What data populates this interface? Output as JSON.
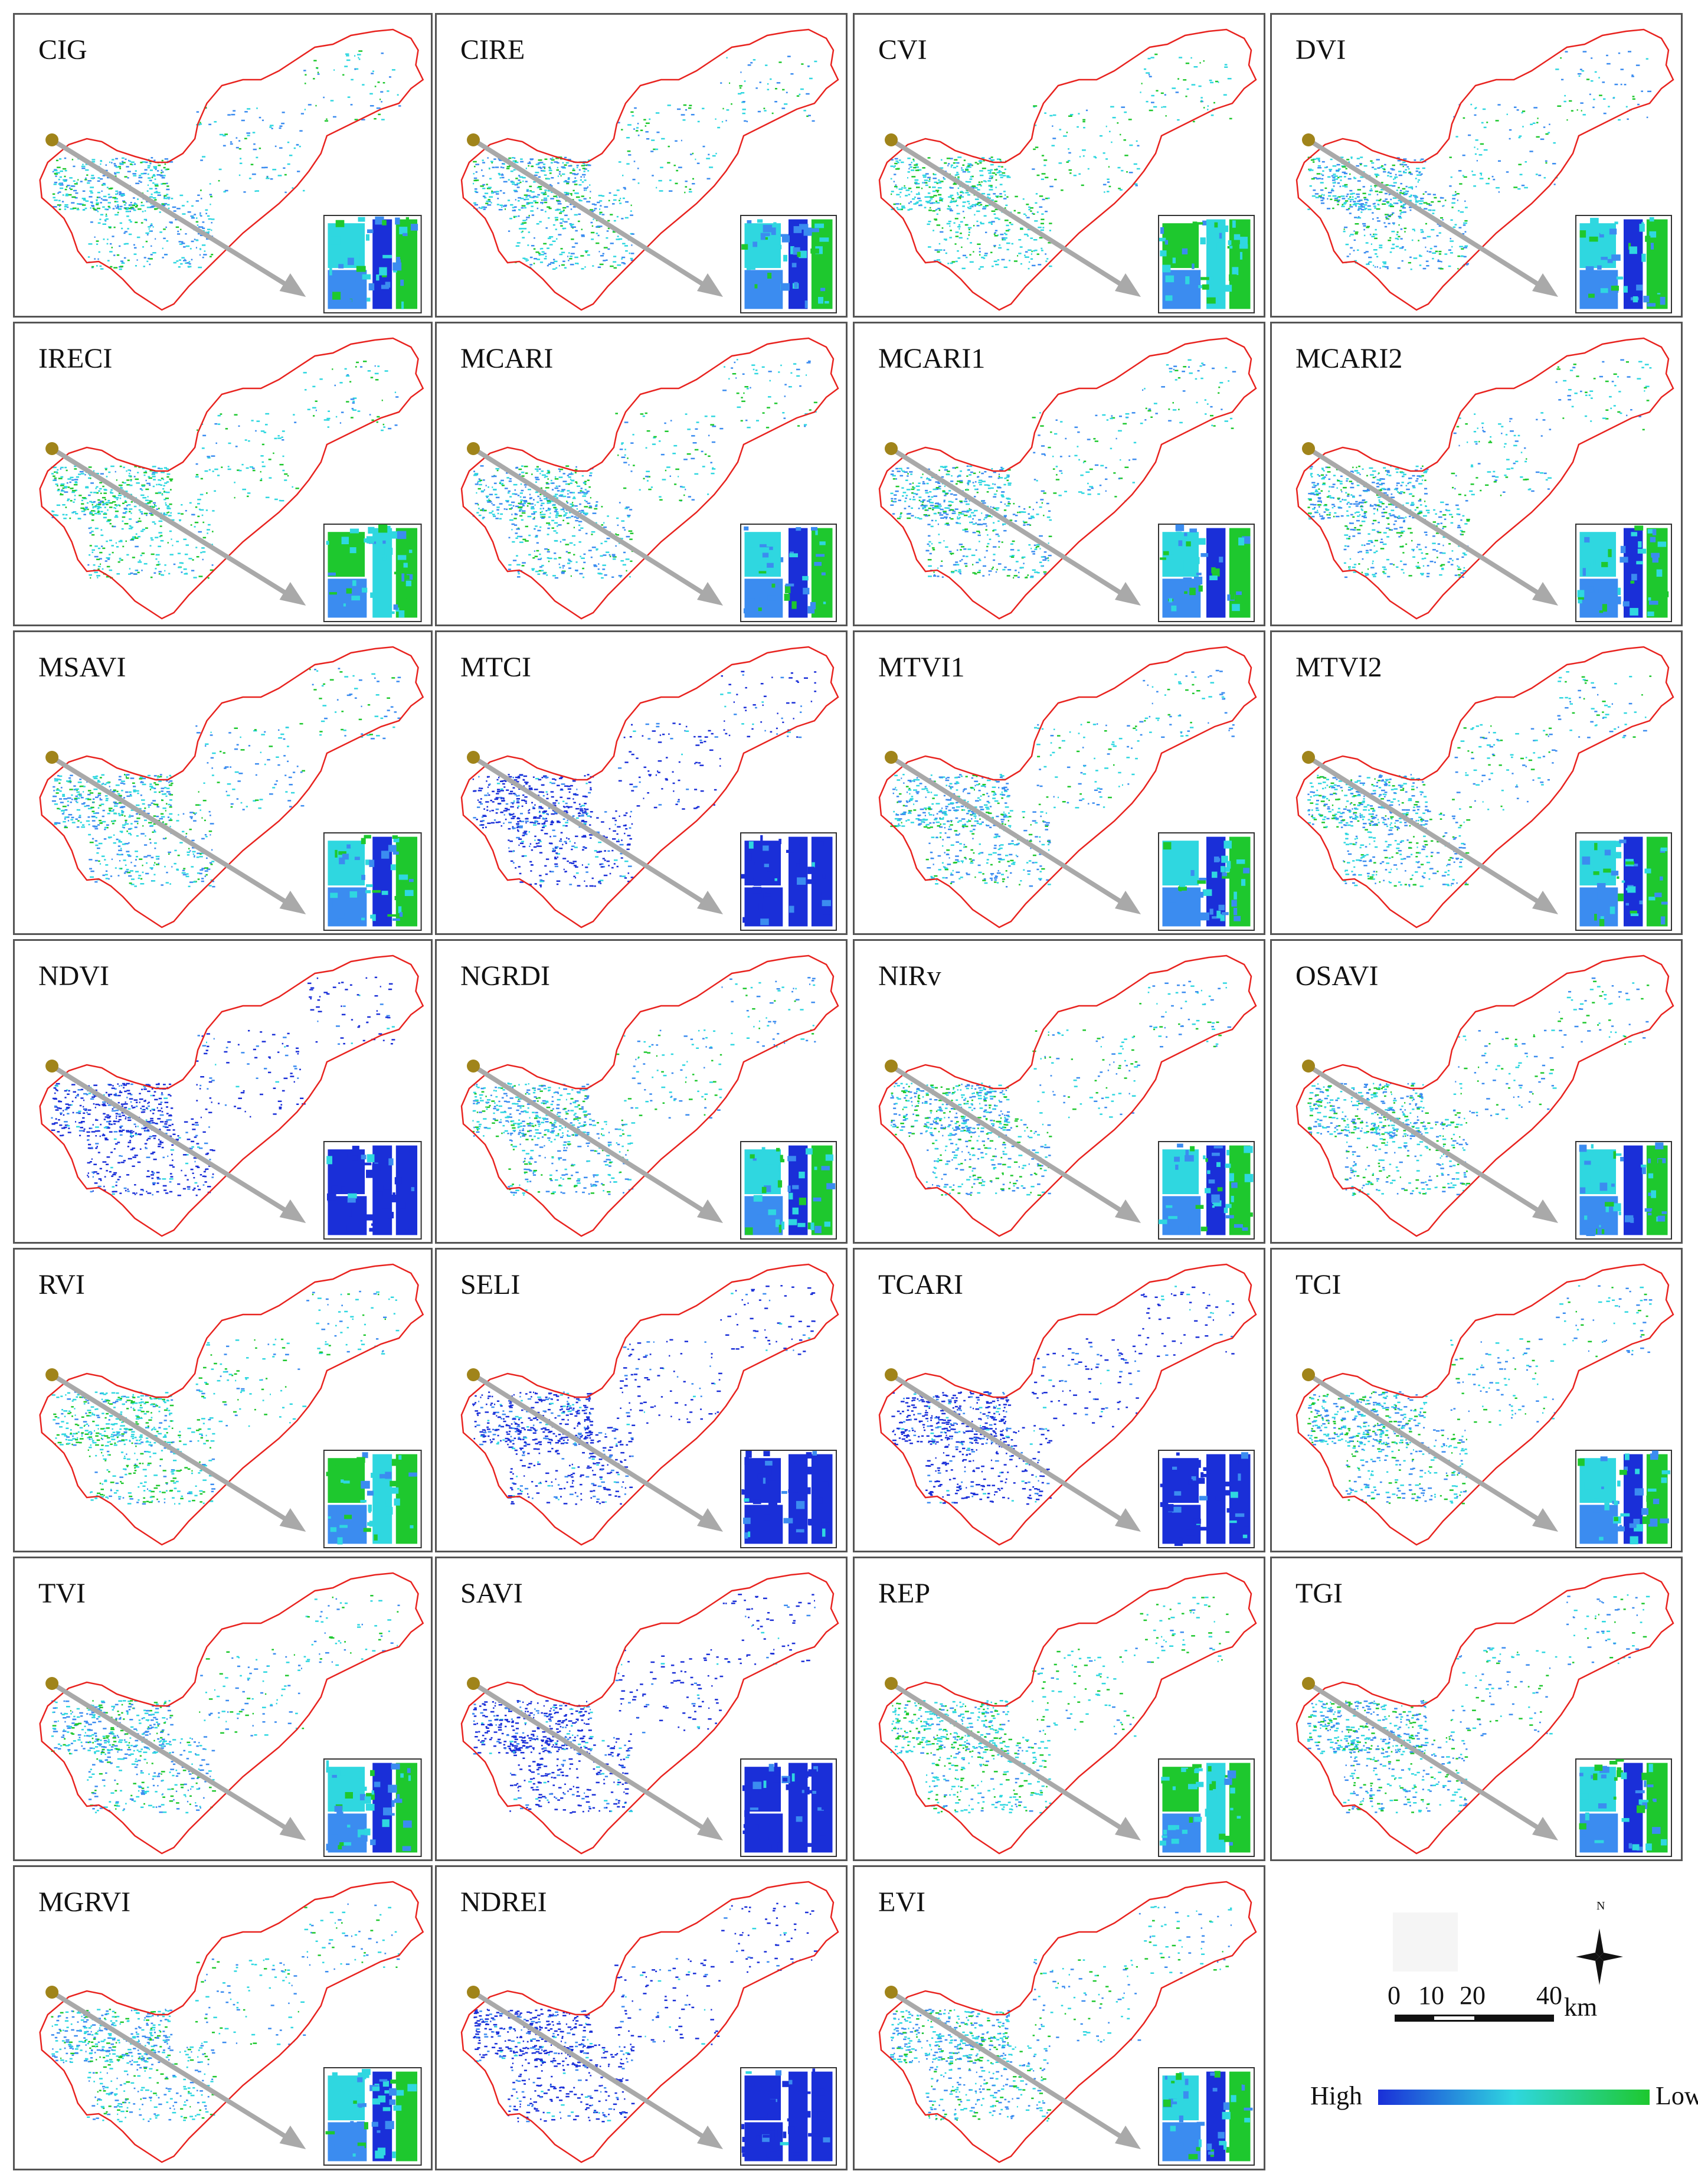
{
  "figure": {
    "panels": [
      {
        "label": "CIG",
        "palette": "mixed"
      },
      {
        "label": "CIRE",
        "palette": "mixed"
      },
      {
        "label": "CVI",
        "palette": "green"
      },
      {
        "label": "DVI",
        "palette": "mixed"
      },
      {
        "label": "IRECI",
        "palette": "green"
      },
      {
        "label": "MCARI",
        "palette": "mixed"
      },
      {
        "label": "MCARI1",
        "palette": "mixed"
      },
      {
        "label": "MCARI2",
        "palette": "mixed"
      },
      {
        "label": "MSAVI",
        "palette": "mixed"
      },
      {
        "label": "MTCI",
        "palette": "blue"
      },
      {
        "label": "MTVI1",
        "palette": "mixed"
      },
      {
        "label": "MTVI2",
        "palette": "mixed"
      },
      {
        "label": "NDVI",
        "palette": "blue"
      },
      {
        "label": "NGRDI",
        "palette": "mixed"
      },
      {
        "label": "NIRv",
        "palette": "mixed"
      },
      {
        "label": "OSAVI",
        "palette": "mixed"
      },
      {
        "label": "RVI",
        "palette": "green"
      },
      {
        "label": "SELI",
        "palette": "blue"
      },
      {
        "label": "TCARI",
        "palette": "blue"
      },
      {
        "label": "TCI",
        "palette": "mixed"
      },
      {
        "label": "TVI",
        "palette": "mixed"
      },
      {
        "label": "SAVI",
        "palette": "blue"
      },
      {
        "label": "REP",
        "palette": "green"
      },
      {
        "label": "TGI",
        "palette": "mixed"
      },
      {
        "label": "MGRVI",
        "palette": "mixed"
      },
      {
        "label": "NDREI",
        "palette": "blue"
      },
      {
        "label": "EVI",
        "palette": "mixed"
      }
    ],
    "colors": {
      "boundary": "#e8231f",
      "arrow": "#a9a9a9",
      "point": "#a0841a",
      "high": "#1a2fd8",
      "mid": "#2fd7e0",
      "low": "#1ec82e"
    }
  },
  "legend": {
    "north_label": "N",
    "scale_ticks": [
      "0",
      "10",
      "20",
      "40"
    ],
    "scale_unit": "km",
    "high_label": "High",
    "low_label": "Low"
  }
}
